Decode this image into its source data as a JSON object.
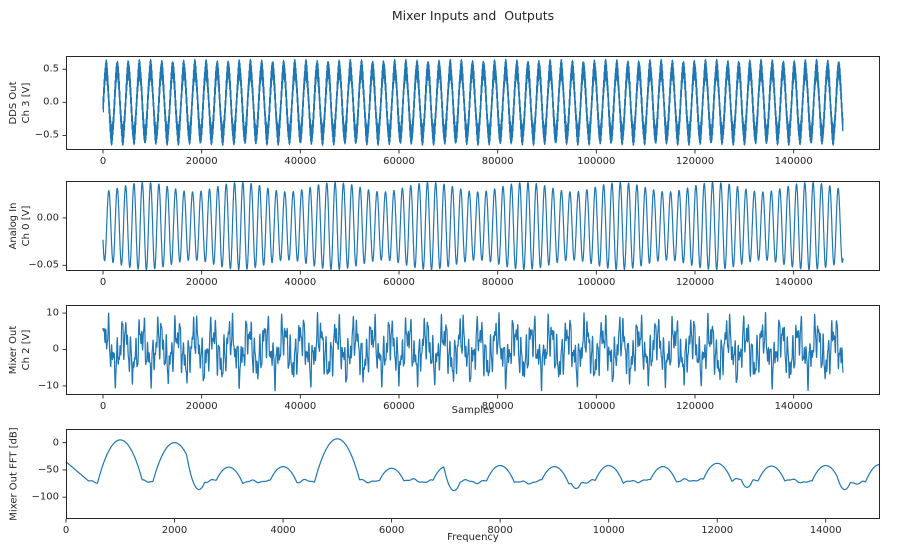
{
  "figure": {
    "title": "Mixer Inputs and  Outputs",
    "background_color": "#ffffff",
    "line_color": "#1f77b4",
    "spine_color": "#262626",
    "text_color": "#262626"
  },
  "chart_data": [
    {
      "id": "dds-out",
      "type": "line",
      "title": "",
      "ylabel_lines": [
        "DDS Out",
        "Ch 3 [V]"
      ],
      "xlabel": "",
      "legend": "none",
      "grid": false,
      "xlim": [
        -7500,
        157500
      ],
      "ylim": [
        -0.72,
        0.7
      ],
      "xticks": {
        "values": [
          0,
          20000,
          40000,
          60000,
          80000,
          100000,
          120000,
          140000
        ],
        "labels": [
          "0",
          "20000",
          "40000",
          "60000",
          "80000",
          "100000",
          "120000",
          "140000"
        ]
      },
      "yticks": {
        "values": [
          0.5,
          0.0,
          -0.5
        ],
        "labels": [
          "0.5",
          "0.0",
          "−0.5"
        ]
      },
      "signal": {
        "x_start": 0,
        "x_end": 150000,
        "points": 6000,
        "offset": 0,
        "components": [
          {
            "amp": 0.5,
            "period": 2250,
            "phase": -0.2
          },
          {
            "amp": 0.15,
            "period": 97,
            "phase": 0
          }
        ]
      }
    },
    {
      "id": "analog-in",
      "type": "line",
      "title": "",
      "ylabel_lines": [
        "Analog In",
        "Ch 0 [V]"
      ],
      "xlabel": "",
      "legend": "none",
      "grid": false,
      "xlim": [
        -7500,
        157500
      ],
      "ylim": [
        -0.056,
        0.039
      ],
      "xticks": {
        "values": [
          0,
          20000,
          40000,
          60000,
          80000,
          100000,
          120000,
          140000
        ],
        "labels": [
          "0",
          "20000",
          "40000",
          "60000",
          "80000",
          "100000",
          "120000",
          "140000"
        ]
      },
      "yticks": {
        "values": [
          0.0,
          -0.05
        ],
        "labels": [
          "0.00",
          "−0.05"
        ]
      },
      "signal": {
        "x_start": 0,
        "x_end": 150000,
        "points": 6000,
        "offset": -0.0085,
        "components": [
          {
            "amp": 0.041,
            "period": 1700,
            "phase": 3.6
          },
          {
            "amp": 0.005,
            "period": 1562,
            "phase": 0.8
          }
        ]
      }
    },
    {
      "id": "mixer-out",
      "type": "line",
      "title": "",
      "ylabel_lines": [
        "Mixer Out",
        "Ch 2 [V]"
      ],
      "xlabel": "Samples",
      "legend": "none",
      "grid": false,
      "xlim": [
        -7500,
        157500
      ],
      "ylim": [
        -12.5,
        12.2
      ],
      "xticks": {
        "values": [
          0,
          20000,
          40000,
          60000,
          80000,
          100000,
          120000,
          140000
        ],
        "labels": [
          "0",
          "20000",
          "40000",
          "60000",
          "80000",
          "100000",
          "120000",
          "140000"
        ]
      },
      "yticks": {
        "values": [
          10,
          0,
          -10
        ],
        "labels": [
          "10",
          "0",
          "−10"
        ]
      },
      "signal": {
        "x_start": 0,
        "x_end": 150000,
        "points": 6000,
        "offset": 0,
        "components": [
          {
            "amp": 4.2,
            "period": 3600,
            "phase": 0.4
          },
          {
            "amp": 3.2,
            "period": 900,
            "phase": 0
          },
          {
            "amp": 2.6,
            "period": 557,
            "phase": 1.1
          },
          {
            "amp": 1.4,
            "period": 292,
            "phase": 2.0
          }
        ]
      }
    },
    {
      "id": "mixer-out-fft",
      "type": "line",
      "title": "",
      "ylabel_lines": [
        "Mixer Out FFT [dB]"
      ],
      "xlabel": "Frequency",
      "legend": "none",
      "grid": false,
      "xlim": [
        0,
        15000
      ],
      "ylim": [
        -140,
        25
      ],
      "xticks": {
        "values": [
          0,
          2000,
          4000,
          6000,
          8000,
          10000,
          12000,
          14000
        ],
        "labels": [
          "0",
          "2000",
          "4000",
          "6000",
          "8000",
          "10000",
          "12000",
          "14000"
        ]
      },
      "yticks": {
        "values": [
          0,
          -50,
          -100
        ],
        "labels": [
          "0",
          "−50",
          "−100"
        ]
      },
      "fft": {
        "x_start": 0,
        "x_end": 15000,
        "points": 1500,
        "noise_floor": -71,
        "noise_components": [
          {
            "amp": 2.2,
            "freq": 0.0189,
            "phase": 0
          },
          {
            "amp": 1.6,
            "freq": 0.0071,
            "phase": 1.3
          },
          {
            "amp": 1.0,
            "freq": 0.0403,
            "phase": 0.7
          },
          {
            "amp": 1.2,
            "freq": 0.00113,
            "phase": 0.4
          }
        ],
        "start_level": -35,
        "start_slope": 0.085,
        "peak_width": 70,
        "peak_sharpness": 2.2,
        "peaks": [
          {
            "f": 1000,
            "level": 5
          },
          {
            "f": 2000,
            "level": 0
          },
          {
            "f": 3000,
            "level": -45
          },
          {
            "f": 4000,
            "level": -44
          },
          {
            "f": 5000,
            "level": 7
          },
          {
            "f": 6000,
            "level": -47
          },
          {
            "f": 7000,
            "level": -44
          },
          {
            "f": 8000,
            "level": -42
          },
          {
            "f": 9000,
            "level": -44
          },
          {
            "f": 10000,
            "level": -42
          },
          {
            "f": 11000,
            "level": -44
          },
          {
            "f": 12000,
            "level": -38
          },
          {
            "f": 13000,
            "level": -43
          },
          {
            "f": 14000,
            "level": -42
          },
          {
            "f": 15000,
            "level": -40
          }
        ],
        "notch_width": 45,
        "notch_sharpness": 2.5,
        "notches": [
          {
            "f": 2450,
            "level": -86
          },
          {
            "f": 7150,
            "level": -88
          },
          {
            "f": 9400,
            "level": -84
          },
          {
            "f": 12550,
            "level": -82
          },
          {
            "f": 14350,
            "level": -86
          }
        ]
      }
    }
  ]
}
